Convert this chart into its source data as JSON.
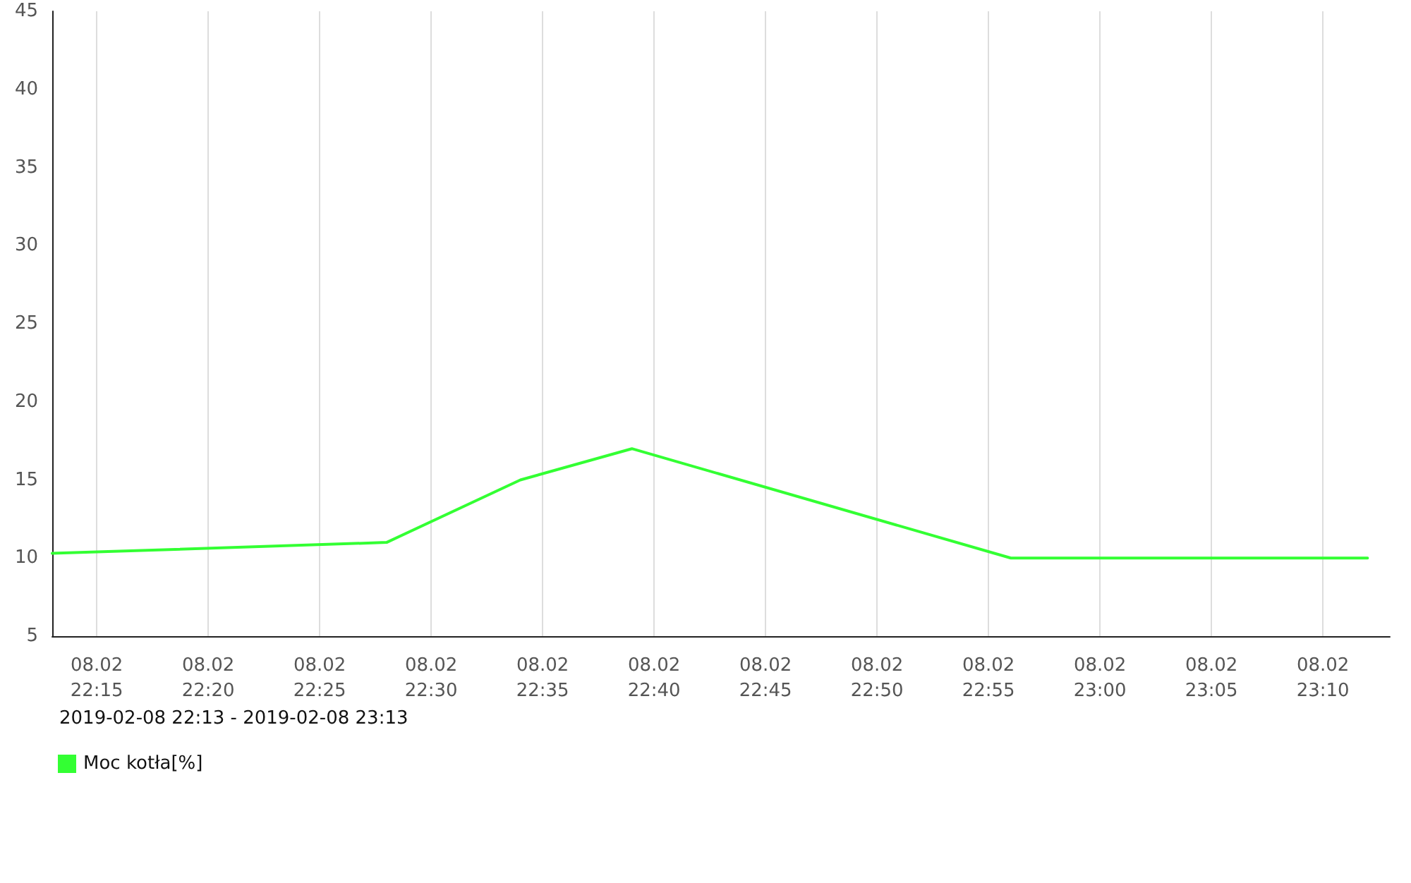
{
  "chart_data": {
    "type": "line",
    "x": [
      "2019-02-08T22:13",
      "2019-02-08T22:28",
      "2019-02-08T22:34",
      "2019-02-08T22:39",
      "2019-02-08T22:56",
      "2019-02-08T23:12"
    ],
    "series": [
      {
        "name": "Moc kotła[%]",
        "color": "#33ff33",
        "values": [
          10.3,
          11,
          15,
          17,
          10,
          10
        ]
      }
    ],
    "xlim": [
      "2019-02-08T22:13",
      "2019-02-08T23:13"
    ],
    "xticks": [
      {
        "value": "2019-02-08T22:15",
        "label": "08.02\n22:15"
      },
      {
        "value": "2019-02-08T22:20",
        "label": "08.02\n22:20"
      },
      {
        "value": "2019-02-08T22:25",
        "label": "08.02\n22:25"
      },
      {
        "value": "2019-02-08T22:30",
        "label": "08.02\n22:30"
      },
      {
        "value": "2019-02-08T22:35",
        "label": "08.02\n22:35"
      },
      {
        "value": "2019-02-08T22:40",
        "label": "08.02\n22:40"
      },
      {
        "value": "2019-02-08T22:45",
        "label": "08.02\n22:45"
      },
      {
        "value": "2019-02-08T22:50",
        "label": "08.02\n22:50"
      },
      {
        "value": "2019-02-08T22:55",
        "label": "08.02\n22:55"
      },
      {
        "value": "2019-02-08T23:00",
        "label": "08.02\n23:00"
      },
      {
        "value": "2019-02-08T23:05",
        "label": "08.02\n23:05"
      },
      {
        "value": "2019-02-08T23:10",
        "label": "08.02\n23:10"
      }
    ],
    "ylim": [
      5,
      45
    ],
    "yticks": [
      5,
      10,
      15,
      20,
      25,
      30,
      35,
      40,
      45
    ],
    "annotations": [
      "2019-02-08 22:13 - 2019-02-08 23:13"
    ],
    "grid": "x",
    "legend": "bottom left",
    "marker": "none",
    "line_style": "solid"
  }
}
